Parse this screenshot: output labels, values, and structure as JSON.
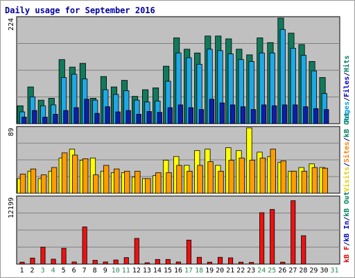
{
  "chart_data": [
    {
      "type": "bar",
      "title": "Daily usage for September 2016",
      "ymax_label": "224",
      "legend": [
        {
          "text": "Pages",
          "color": "#00a0e0"
        },
        {
          "text": "/",
          "color": "#000080"
        },
        {
          "text": "Files",
          "color": "#0000d0"
        },
        {
          "text": "/",
          "color": "#000080"
        },
        {
          "text": "Hits",
          "color": "#008060"
        }
      ],
      "series": [
        {
          "name": "Hits",
          "color": "#117a5b",
          "values": [
            38,
            78,
            50,
            54,
            136,
            120,
            128,
            54,
            100,
            78,
            92,
            58,
            72,
            76,
            122,
            182,
            158,
            150,
            186,
            186,
            180,
            158,
            146,
            182,
            172,
            224,
            192,
            168,
            132,
            98,
            0
          ]
        },
        {
          "name": "Files",
          "color": "#1ea8e6",
          "values": [
            25,
            57,
            38,
            40,
            98,
            105,
            95,
            50,
            72,
            62,
            70,
            50,
            46,
            48,
            90,
            150,
            140,
            126,
            158,
            155,
            148,
            136,
            132,
            150,
            150,
            200,
            160,
            145,
            112,
            64,
            0
          ]
        },
        {
          "name": "Pages",
          "color": "#0c1fa8",
          "values": [
            14,
            28,
            14,
            20,
            28,
            34,
            52,
            22,
            36,
            25,
            28,
            20,
            26,
            24,
            34,
            40,
            34,
            30,
            52,
            44,
            40,
            36,
            30,
            40,
            38,
            40,
            40,
            36,
            32,
            30,
            0
          ]
        }
      ]
    },
    {
      "type": "bar",
      "ymax_label": "89",
      "legend": [
        {
          "text": "Visits",
          "color": "#e0d000"
        },
        {
          "text": "/",
          "color": "#000080"
        },
        {
          "text": "Sites",
          "color": "#ff8000"
        },
        {
          "text": "/",
          "color": "#000080"
        },
        {
          "text": "kB Out",
          "color": "#008060"
        }
      ],
      "series": [
        {
          "name": "Visits",
          "color": "#ffff00",
          "values": [
            20,
            30,
            20,
            30,
            48,
            60,
            45,
            48,
            30,
            28,
            28,
            22,
            20,
            24,
            45,
            50,
            38,
            58,
            60,
            38,
            62,
            58,
            89,
            56,
            50,
            42,
            30,
            35,
            40,
            35,
            0
          ]
        },
        {
          "name": "Sites",
          "color": "#ff9c00",
          "values": [
            26,
            33,
            25,
            35,
            55,
            52,
            47,
            25,
            38,
            33,
            30,
            30,
            20,
            28,
            28,
            38,
            30,
            38,
            43,
            30,
            45,
            48,
            45,
            48,
            60,
            44,
            30,
            30,
            35,
            34,
            0
          ]
        },
        {
          "name": "kB Out",
          "color": "#117a5b",
          "values": [
            0,
            0,
            0,
            0,
            0,
            0,
            0,
            0,
            0,
            0,
            0,
            0,
            0,
            0,
            0,
            0,
            0,
            0,
            0,
            0,
            0,
            0,
            0,
            0,
            0,
            0,
            0,
            0,
            0,
            0,
            0
          ]
        }
      ]
    },
    {
      "type": "bar",
      "ymax_label": "12199",
      "legend": [
        {
          "text": "kB F",
          "color": "#e00000"
        },
        {
          "text": "/",
          "color": "#000080"
        },
        {
          "text": "kB In",
          "color": "#0000d0"
        },
        {
          "text": "/",
          "color": "#000080"
        },
        {
          "text": "kB Out",
          "color": "#008060"
        }
      ],
      "series": [
        {
          "name": "kB F",
          "color": "#ee1111",
          "values": [
            350,
            1100,
            3100,
            900,
            2900,
            400,
            6800,
            700,
            400,
            750,
            1200,
            4700,
            250,
            850,
            850,
            400,
            4400,
            1250,
            350,
            1250,
            1150,
            350,
            300,
            9400,
            10000,
            350,
            11600,
            5200,
            0,
            0,
            0
          ]
        }
      ]
    }
  ],
  "days": [
    {
      "label": "1",
      "color": "#000000"
    },
    {
      "label": "2",
      "color": "#000000"
    },
    {
      "label": "3",
      "color": "#2e8b57"
    },
    {
      "label": "4",
      "color": "#2e8b57"
    },
    {
      "label": "5",
      "color": "#000000"
    },
    {
      "label": "6",
      "color": "#000000"
    },
    {
      "label": "7",
      "color": "#000000"
    },
    {
      "label": "8",
      "color": "#000000"
    },
    {
      "label": "9",
      "color": "#000000"
    },
    {
      "label": "10",
      "color": "#2e8b57"
    },
    {
      "label": "11",
      "color": "#2e8b57"
    },
    {
      "label": "12",
      "color": "#000000"
    },
    {
      "label": "13",
      "color": "#000000"
    },
    {
      "label": "14",
      "color": "#000000"
    },
    {
      "label": "15",
      "color": "#000000"
    },
    {
      "label": "16",
      "color": "#000000"
    },
    {
      "label": "17",
      "color": "#2e8b57"
    },
    {
      "label": "18",
      "color": "#2e8b57"
    },
    {
      "label": "19",
      "color": "#000000"
    },
    {
      "label": "20",
      "color": "#000000"
    },
    {
      "label": "21",
      "color": "#000000"
    },
    {
      "label": "22",
      "color": "#000000"
    },
    {
      "label": "23",
      "color": "#000000"
    },
    {
      "label": "24",
      "color": "#2e8b57"
    },
    {
      "label": "25",
      "color": "#2e8b57"
    },
    {
      "label": "26",
      "color": "#000000"
    },
    {
      "label": "27",
      "color": "#000000"
    },
    {
      "label": "28",
      "color": "#000000"
    },
    {
      "label": "29",
      "color": "#000000"
    },
    {
      "label": "30",
      "color": "#000000"
    },
    {
      "label": "31",
      "color": "#2e8b57"
    }
  ],
  "colors": {
    "title": "#0000a0",
    "panel_bg": "#c0c0c0",
    "gridline": "#808080",
    "tick_text": "#000000"
  }
}
